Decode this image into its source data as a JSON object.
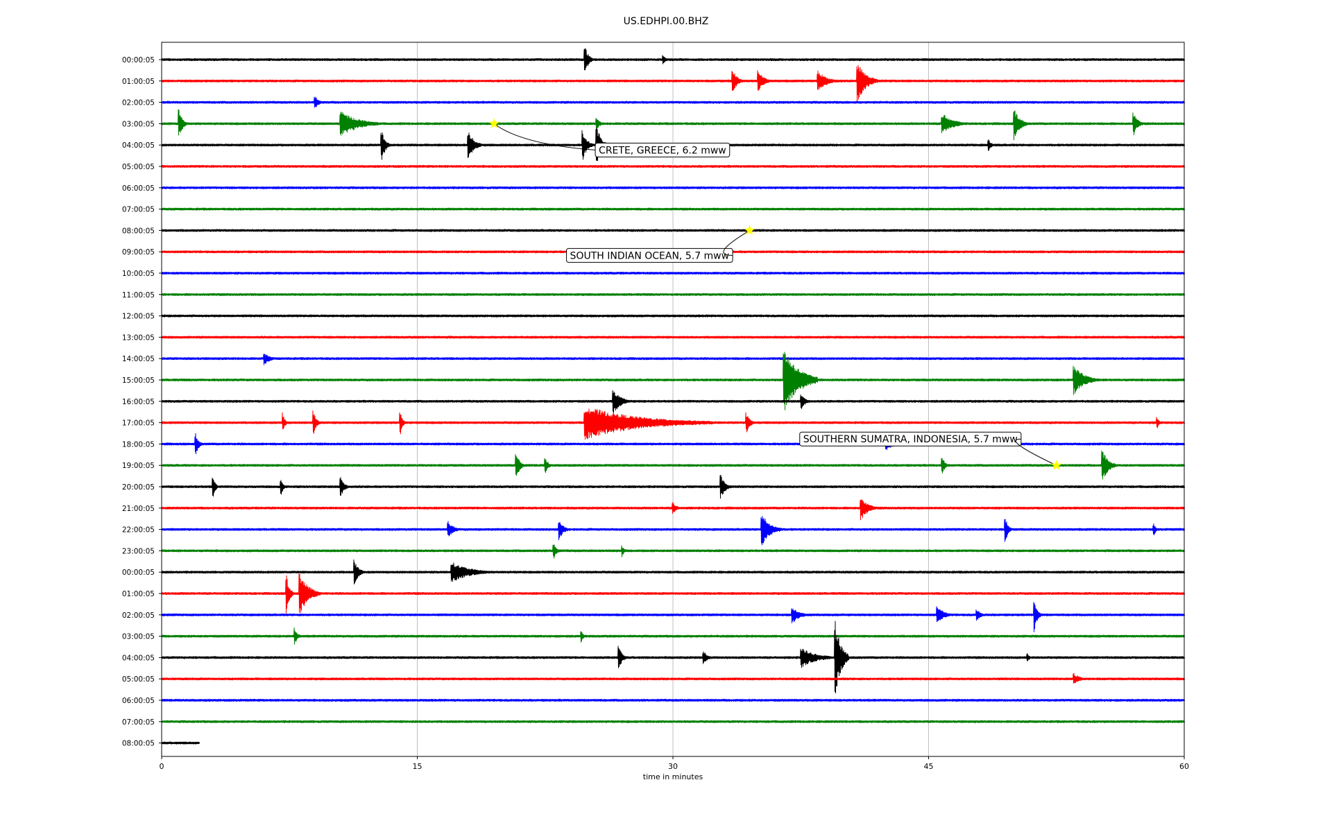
{
  "chart_data": {
    "type": "line",
    "title": "US.EDHPI.00.BHZ",
    "xlabel": "time in minutes",
    "ylabel": "",
    "xlim": [
      0,
      60
    ],
    "xticks": [
      "0",
      "15",
      "30",
      "45",
      "60"
    ],
    "grid": "vertical",
    "colors": [
      "#000000",
      "#ff0000",
      "#0000ff",
      "#008000"
    ],
    "row_labels": [
      "00:00:05",
      "01:00:05",
      "02:00:05",
      "03:00:05",
      "04:00:05",
      "05:00:05",
      "06:00:05",
      "07:00:05",
      "08:00:05",
      "09:00:05",
      "10:00:05",
      "11:00:05",
      "12:00:05",
      "13:00:05",
      "14:00:05",
      "15:00:05",
      "16:00:05",
      "17:00:05",
      "18:00:05",
      "19:00:05",
      "20:00:05",
      "21:00:05",
      "22:00:05",
      "23:00:05",
      "00:00:05",
      "01:00:05",
      "02:00:05",
      "03:00:05",
      "04:00:05",
      "05:00:05",
      "06:00:05",
      "07:00:05",
      "08:00:05"
    ],
    "last_row_end_minutes": 2.2,
    "bursts": [
      {
        "row": 0,
        "t": 24.8,
        "amp": 0.8,
        "dur": 0.5
      },
      {
        "row": 0,
        "t": 29.4,
        "amp": 0.3,
        "dur": 0.3
      },
      {
        "row": 1,
        "t": 33.5,
        "amp": 0.6,
        "dur": 0.6
      },
      {
        "row": 1,
        "t": 35.0,
        "amp": 0.5,
        "dur": 0.8
      },
      {
        "row": 1,
        "t": 38.5,
        "amp": 0.5,
        "dur": 1.2
      },
      {
        "row": 1,
        "t": 40.8,
        "amp": 1.0,
        "dur": 1.2
      },
      {
        "row": 2,
        "t": 9.0,
        "amp": 0.3,
        "dur": 0.5
      },
      {
        "row": 3,
        "t": 1.0,
        "amp": 0.7,
        "dur": 0.5
      },
      {
        "row": 3,
        "t": 10.5,
        "amp": 0.6,
        "dur": 2.5
      },
      {
        "row": 3,
        "t": 25.5,
        "amp": 0.3,
        "dur": 0.5
      },
      {
        "row": 3,
        "t": 45.8,
        "amp": 0.5,
        "dur": 1.5
      },
      {
        "row": 3,
        "t": 50.0,
        "amp": 0.8,
        "dur": 0.8
      },
      {
        "row": 3,
        "t": 57.0,
        "amp": 0.6,
        "dur": 0.6
      },
      {
        "row": 4,
        "t": 12.9,
        "amp": 0.8,
        "dur": 0.5
      },
      {
        "row": 4,
        "t": 18.0,
        "amp": 0.7,
        "dur": 0.8
      },
      {
        "row": 4,
        "t": 24.7,
        "amp": 0.7,
        "dur": 0.6
      },
      {
        "row": 4,
        "t": 25.5,
        "amp": 1.1,
        "dur": 0.6
      },
      {
        "row": 4,
        "t": 48.5,
        "amp": 0.3,
        "dur": 0.4
      },
      {
        "row": 14,
        "t": 6.0,
        "amp": 0.3,
        "dur": 0.8
      },
      {
        "row": 15,
        "t": 36.5,
        "amp": 1.6,
        "dur": 2.0
      },
      {
        "row": 15,
        "t": 53.5,
        "amp": 0.7,
        "dur": 1.5
      },
      {
        "row": 16,
        "t": 26.5,
        "amp": 0.6,
        "dur": 1.0
      },
      {
        "row": 16,
        "t": 37.5,
        "amp": 0.4,
        "dur": 0.6
      },
      {
        "row": 17,
        "t": 7.1,
        "amp": 0.5,
        "dur": 0.3
      },
      {
        "row": 17,
        "t": 8.9,
        "amp": 0.6,
        "dur": 0.4
      },
      {
        "row": 17,
        "t": 14.0,
        "amp": 0.6,
        "dur": 0.3
      },
      {
        "row": 17,
        "t": 24.8,
        "amp": 0.8,
        "dur": 7.5
      },
      {
        "row": 17,
        "t": 34.3,
        "amp": 0.5,
        "dur": 0.5
      },
      {
        "row": 17,
        "t": 58.4,
        "amp": 0.3,
        "dur": 0.3
      },
      {
        "row": 18,
        "t": 2.0,
        "amp": 0.5,
        "dur": 0.4
      },
      {
        "row": 18,
        "t": 42.5,
        "amp": 0.3,
        "dur": 1.0
      },
      {
        "row": 19,
        "t": 20.8,
        "amp": 0.6,
        "dur": 0.5
      },
      {
        "row": 19,
        "t": 22.5,
        "amp": 0.4,
        "dur": 0.4
      },
      {
        "row": 19,
        "t": 45.8,
        "amp": 0.4,
        "dur": 0.4
      },
      {
        "row": 19,
        "t": 55.2,
        "amp": 0.8,
        "dur": 0.8
      },
      {
        "row": 20,
        "t": 3.0,
        "amp": 0.6,
        "dur": 0.3
      },
      {
        "row": 20,
        "t": 7.0,
        "amp": 0.4,
        "dur": 0.3
      },
      {
        "row": 20,
        "t": 10.5,
        "amp": 0.5,
        "dur": 0.5
      },
      {
        "row": 20,
        "t": 32.8,
        "amp": 0.6,
        "dur": 0.6
      },
      {
        "row": 21,
        "t": 30.0,
        "amp": 0.3,
        "dur": 0.5
      },
      {
        "row": 21,
        "t": 41.0,
        "amp": 0.6,
        "dur": 1.0
      },
      {
        "row": 22,
        "t": 16.8,
        "amp": 0.4,
        "dur": 0.8
      },
      {
        "row": 22,
        "t": 23.3,
        "amp": 0.5,
        "dur": 0.6
      },
      {
        "row": 22,
        "t": 35.2,
        "amp": 0.8,
        "dur": 1.2
      },
      {
        "row": 22,
        "t": 49.5,
        "amp": 0.6,
        "dur": 0.4
      },
      {
        "row": 22,
        "t": 58.2,
        "amp": 0.3,
        "dur": 0.3
      },
      {
        "row": 23,
        "t": 23.0,
        "amp": 0.4,
        "dur": 0.4
      },
      {
        "row": 23,
        "t": 27.0,
        "amp": 0.3,
        "dur": 0.3
      },
      {
        "row": 24,
        "t": 11.3,
        "amp": 0.6,
        "dur": 0.6
      },
      {
        "row": 24,
        "t": 17.0,
        "amp": 0.5,
        "dur": 2.5
      },
      {
        "row": 25,
        "t": 7.3,
        "amp": 1.1,
        "dur": 0.4
      },
      {
        "row": 25,
        "t": 8.1,
        "amp": 1.0,
        "dur": 1.2
      },
      {
        "row": 26,
        "t": 37.0,
        "amp": 0.4,
        "dur": 1.0
      },
      {
        "row": 26,
        "t": 45.5,
        "amp": 0.4,
        "dur": 1.0
      },
      {
        "row": 26,
        "t": 47.8,
        "amp": 0.3,
        "dur": 0.6
      },
      {
        "row": 26,
        "t": 51.2,
        "amp": 0.8,
        "dur": 0.4
      },
      {
        "row": 27,
        "t": 7.8,
        "amp": 0.4,
        "dur": 0.4
      },
      {
        "row": 27,
        "t": 24.6,
        "amp": 0.3,
        "dur": 0.3
      },
      {
        "row": 28,
        "t": 26.8,
        "amp": 0.6,
        "dur": 0.5
      },
      {
        "row": 28,
        "t": 31.8,
        "amp": 0.3,
        "dur": 0.6
      },
      {
        "row": 28,
        "t": 37.5,
        "amp": 0.5,
        "dur": 2.0
      },
      {
        "row": 28,
        "t": 39.5,
        "amp": 1.9,
        "dur": 0.8
      },
      {
        "row": 28,
        "t": 50.8,
        "amp": 0.2,
        "dur": 0.3
      },
      {
        "row": 29,
        "t": 53.5,
        "amp": 0.3,
        "dur": 0.8
      }
    ]
  },
  "annotations": [
    {
      "label": "CRETE, GREECE, 6.2 mww",
      "row": 3,
      "t": 19.5
    },
    {
      "label": "SOUTH INDIAN OCEAN, 5.7 mww",
      "row": 8,
      "t": 34.5
    },
    {
      "label": "SOUTHERN SUMATRA, INDONESIA, 5.7 mww",
      "row": 19,
      "t": 52.5
    }
  ],
  "annotation_style": {
    "marker_color": "#ffff00",
    "box_fill": "#ffffff",
    "box_stroke": "#000000"
  }
}
